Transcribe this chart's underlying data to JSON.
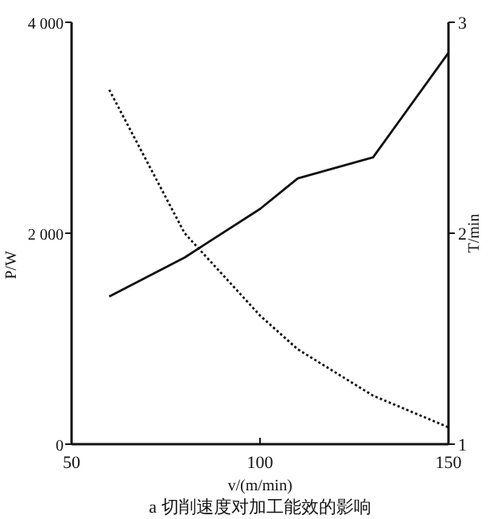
{
  "chart_data": {
    "type": "line",
    "xlabel": "v/(m/min)",
    "ylabel": "P/W",
    "y2label": "T/min",
    "annotations": [
      "a 切削速度对加工能效的影响"
    ],
    "xlim": [
      50,
      150
    ],
    "xticks": [
      50,
      100,
      150
    ],
    "ylim": [
      0,
      4000
    ],
    "yticks": [
      0,
      {
        "value": 2000,
        "label": "2 000"
      },
      {
        "value": 4000,
        "label": "4 000"
      }
    ],
    "y2lim": [
      1,
      3
    ],
    "y2ticks": [
      1,
      2,
      3
    ],
    "series": [
      {
        "color": "#111111",
        "line_style": "solid",
        "x": [
          60,
          80,
          100,
          110,
          130,
          150
        ],
        "values": [
          1400,
          1770,
          2230,
          2520,
          2720,
          3710
        ]
      },
      {
        "color": "#111111",
        "line_style": "dotted",
        "axis": "y2",
        "x": [
          60,
          80,
          100,
          110,
          130,
          150
        ],
        "values": [
          2.68,
          2.0,
          1.61,
          1.45,
          1.23,
          1.08
        ]
      }
    ]
  }
}
